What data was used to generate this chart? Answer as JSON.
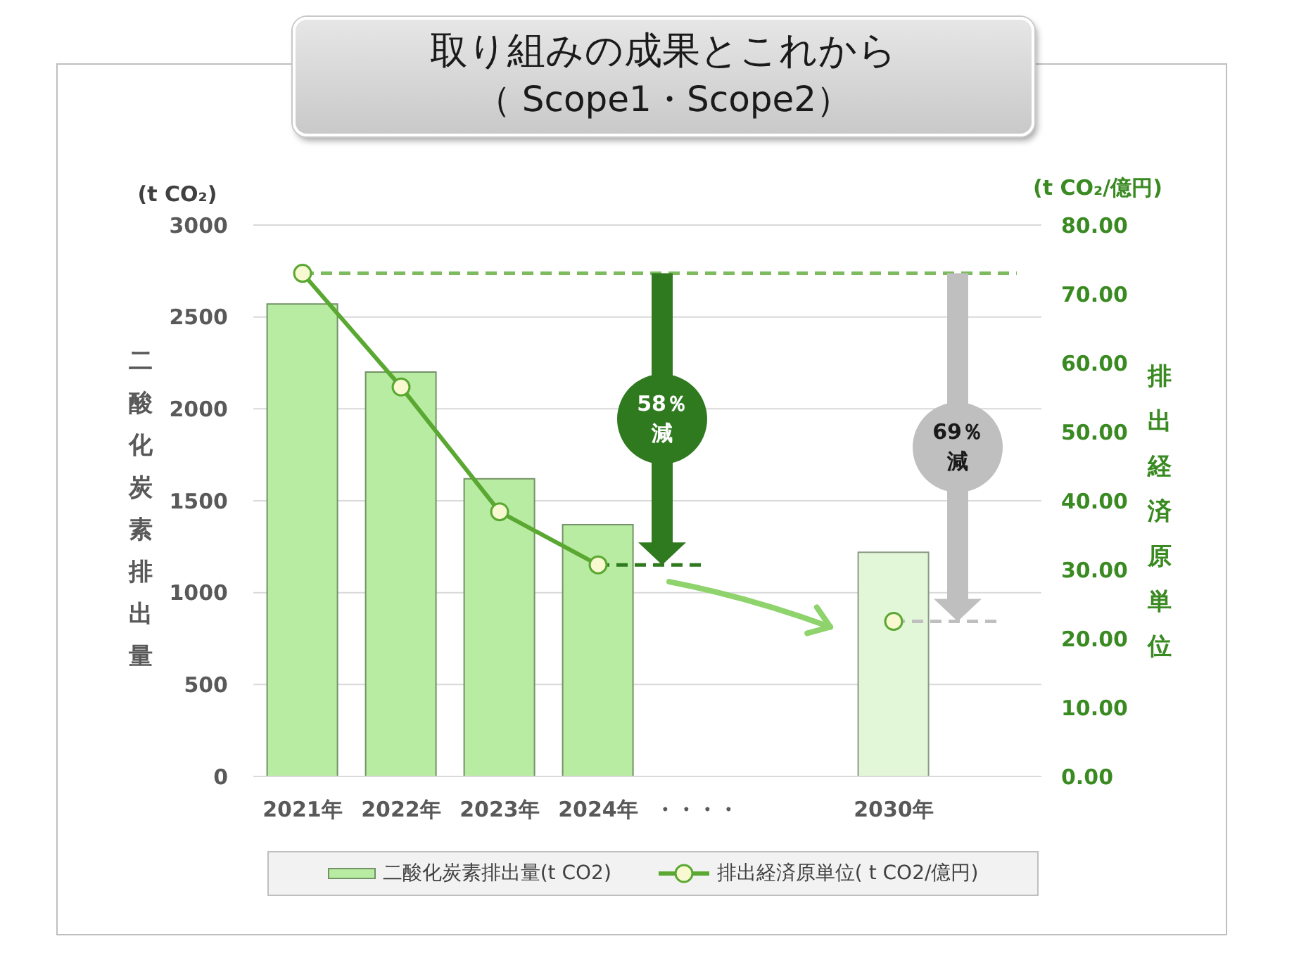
{
  "chart_data": {
    "type": "bar",
    "title": "取り組みの成果とこれから",
    "subtitle": "（ Scope1・Scope2）",
    "ylabel": "二酸化炭素排出量",
    "y2label": "排出経済原単位",
    "categories": [
      "2021年",
      "2022年",
      "2023年",
      "2024年",
      "・・・・",
      null,
      "2030年",
      null
    ],
    "series": [
      {
        "name": "二酸化炭素排出量(t CO2)",
        "colors": [
          "#b9eca3",
          "#b9eca3",
          "#b9eca3",
          "#b9eca3",
          null,
          null,
          "#e2f7d8",
          null
        ],
        "values": [
          2570,
          2200,
          1620,
          1370,
          null,
          null,
          1220,
          null
        ]
      },
      {
        "name": "排出経済原単位( t CO2/億円)",
        "type": "line",
        "axis": "y2",
        "color": "#5aa832",
        "marker": "circle",
        "values": [
          73,
          56.5,
          38.4,
          30.7,
          null,
          null,
          22.5,
          null
        ]
      }
    ],
    "ylim": [
      0,
      3000
    ],
    "yticks": [
      0,
      500,
      1000,
      1500,
      2000,
      2500,
      3000
    ],
    "y2lim": [
      0,
      80
    ],
    "y2ticks": [
      {
        "value": 0,
        "label": "0.00"
      },
      {
        "value": 10,
        "label": "10.00"
      },
      {
        "value": 20,
        "label": "20.00"
      },
      {
        "value": 30,
        "label": "30.00"
      },
      {
        "value": 40,
        "label": "40.00"
      },
      {
        "value": 50,
        "label": "50.00"
      },
      {
        "value": 60,
        "label": "60.00"
      },
      {
        "value": 70,
        "label": "70.00"
      },
      {
        "value": 80,
        "label": "80.00"
      }
    ],
    "grid": "y",
    "legend": "bottom",
    "ref_lines": [
      {
        "axis": "y2",
        "value": 73,
        "color": "#7dbb5e",
        "line_style": "dashed"
      },
      {
        "axis": "y2",
        "value": 30.7,
        "color": "#2f7a1f",
        "line_style": "dashed"
      },
      {
        "axis": "y2",
        "value": 22.5,
        "color": "#bfbfbf",
        "line_style": "dashed"
      }
    ],
    "annotations": [
      "(t CO₂)",
      "(t CO₂/億円)",
      "58％減",
      "69％減"
    ]
  }
}
